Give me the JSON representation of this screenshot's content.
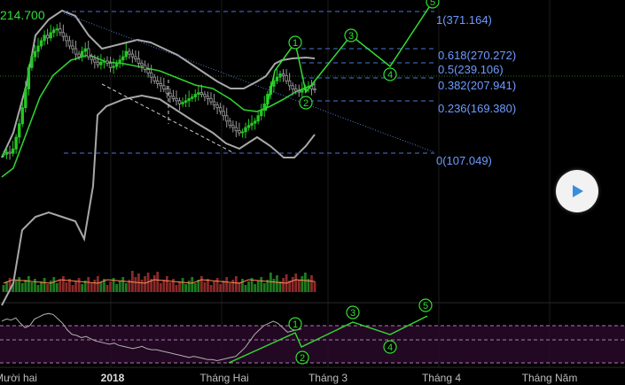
{
  "last_price": "214.700",
  "play_icon": "play-icon",
  "colors": {
    "background": "#000000",
    "up_candle": "#26c526",
    "down_candle": "#9a9a9a",
    "fib_line": "#4a78d8",
    "fib_text": "#6f9bff",
    "wave": "#33dd33",
    "bollinger": "#a8a8a8",
    "sma": "#2fd12f",
    "volume_up": "#1f7a1f",
    "volume_down": "#8a2a2a",
    "volume_ma": "#ff8855",
    "rsi_band": "#2a0a2a",
    "rsi_line": "#b0b0b0"
  },
  "chart_data": {
    "type": "candlestick",
    "x_ticks": [
      "Mười hai",
      "2018",
      "Tháng Hai",
      "Tháng 3",
      "Tháng 4",
      "Tháng Năm"
    ],
    "fib_levels": [
      {
        "ratio": "1",
        "value": "371.164"
      },
      {
        "ratio": "0.618",
        "value": "270.272"
      },
      {
        "ratio": "0.5",
        "value": "239.106"
      },
      {
        "ratio": "0.382",
        "value": "207.941"
      },
      {
        "ratio": "0.236",
        "value": "169.380"
      },
      {
        "ratio": "0",
        "value": "107.049"
      }
    ],
    "wave_labels": [
      "1",
      "2",
      "3",
      "4",
      "5"
    ],
    "rsi_wave_labels": [
      "1",
      "2",
      "3",
      "4",
      "5"
    ],
    "close_prices": [
      118,
      122,
      120,
      128,
      150,
      175,
      205,
      240,
      280,
      300,
      310,
      320,
      330,
      340,
      335,
      345,
      350,
      352,
      345,
      338,
      330,
      320,
      315,
      305,
      300,
      310,
      315,
      300,
      295,
      290,
      285,
      290,
      292,
      288,
      280,
      282,
      288,
      294,
      300,
      310,
      305,
      300,
      296,
      288,
      284,
      276,
      270,
      262,
      255,
      250,
      246,
      240,
      232,
      226,
      222,
      218,
      212,
      215,
      218,
      222,
      225,
      230,
      233,
      230,
      226,
      222,
      216,
      210,
      205,
      198,
      190,
      180,
      172,
      168,
      162,
      158,
      160,
      168,
      172,
      176,
      180,
      190,
      200,
      212,
      230,
      245,
      255,
      262,
      268,
      265,
      255,
      246,
      240,
      236,
      234,
      238,
      242,
      245,
      240,
      238
    ],
    "rsi_values": [
      68,
      70,
      69,
      71,
      66,
      62,
      64,
      70,
      72,
      74,
      75,
      74,
      70,
      66,
      60,
      56,
      55,
      53,
      54,
      52,
      50,
      49,
      48,
      47,
      48,
      46,
      45,
      44,
      43,
      44,
      45,
      43,
      42,
      42,
      41,
      40,
      39,
      38,
      37,
      36,
      35,
      36,
      35,
      34,
      33,
      33,
      32,
      33,
      34,
      35,
      36,
      40,
      44,
      50,
      56,
      60,
      64,
      66,
      68,
      66,
      62,
      58,
      59,
      60,
      61
    ],
    "rsi_projection": [
      {
        "label": "1",
        "x": 0,
        "y": 75
      },
      {
        "label": "2",
        "x": 1,
        "y": 57
      },
      {
        "label": "3",
        "x": 2,
        "y": 68
      },
      {
        "label": "4",
        "x": 3,
        "y": 60
      },
      {
        "label": "5",
        "x": 4,
        "y": 75
      }
    ]
  }
}
